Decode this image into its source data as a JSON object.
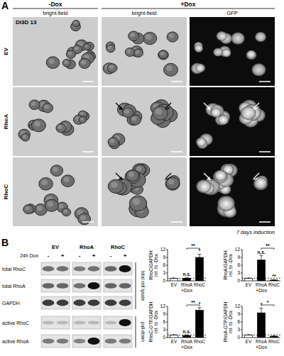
{
  "panel_a": {
    "label": "A",
    "column_headers": [
      "-Dox",
      "+Dox"
    ],
    "subheaders": [
      "bright-field",
      "bright-field",
      "GFP"
    ],
    "row_labels": [
      "EV",
      "RhoA",
      "RhoC"
    ],
    "cell_line": "DI3D 13",
    "footnote": "7 days induction"
  },
  "panel_b": {
    "label": "B",
    "blot": {
      "groups": [
        "EV",
        "RhoA",
        "RhoC"
      ],
      "treatment_label": "24h Dox",
      "treatment": [
        "-",
        "+"
      ],
      "rows": [
        {
          "name": "total RhoC",
          "intensity": [
            0.55,
            0.55,
            0.5,
            0.55,
            0.6,
            1.0
          ]
        },
        {
          "name": "total RhoA",
          "intensity": [
            0.6,
            0.6,
            0.55,
            1.0,
            0.6,
            0.6
          ]
        },
        {
          "name": "GAPDH",
          "intensity": [
            0.8,
            0.8,
            0.8,
            0.8,
            0.8,
            0.8
          ]
        },
        {
          "name": "active RhoC",
          "intensity": [
            0.2,
            0.2,
            0.2,
            0.2,
            0.2,
            1.0
          ]
        },
        {
          "name": "active RhoA",
          "intensity": [
            0.5,
            0.5,
            0.45,
            1.0,
            0.5,
            0.5
          ]
        }
      ],
      "sections": [
        {
          "label": "total cell lysate",
          "rows": [
            0,
            2
          ]
        },
        {
          "label": "pull-down",
          "rows": [
            3,
            4
          ]
        }
      ]
    }
  },
  "chart_data": [
    {
      "type": "bar",
      "y_label": [
        "RhoC/GAPDH",
        "rel. to -Dox"
      ],
      "x_label": "+Dox",
      "categories": [
        "EV",
        "RhoA",
        "RhoC"
      ],
      "values": [
        1,
        1,
        9
      ],
      "errors": [
        0.1,
        0.15,
        1.2
      ],
      "colors": [
        "#ffffff",
        "#000000",
        "#000000"
      ],
      "ylim": [
        0,
        12
      ],
      "yticks": [
        0,
        3,
        6,
        9,
        12
      ],
      "reference_line": 1,
      "annotations": [
        {
          "text": "n.s.",
          "over": "RhoA"
        },
        {
          "text": "*",
          "over": "RhoC"
        },
        {
          "text": "**",
          "between": [
            "RhoA",
            "RhoC"
          ]
        }
      ]
    },
    {
      "type": "bar",
      "y_label": [
        "RhoA/GAPDH",
        "rel. to -Dox"
      ],
      "x_label": "+Dox",
      "categories": [
        "EV",
        "RhoA",
        "RhoC"
      ],
      "values": [
        1,
        8,
        0.3
      ],
      "errors": [
        0.1,
        1.8,
        0.1
      ],
      "colors": [
        "#ffffff",
        "#000000",
        "#000000"
      ],
      "ylim": [
        0,
        12
      ],
      "yticks": [
        0,
        3,
        6,
        9,
        12
      ],
      "reference_line": 1,
      "annotations": [
        {
          "text": "n.s.",
          "over": "RhoA"
        },
        {
          "text": "**",
          "over": "RhoC"
        },
        {
          "text": "**",
          "between": [
            "RhoA",
            "RhoC"
          ]
        }
      ]
    },
    {
      "type": "bar",
      "y_label": [
        "RhoC-GTP/GAPDH",
        "rel. to -Dox"
      ],
      "x_label": "+Dox",
      "categories": [
        "EV",
        "RhoA",
        "RhoC"
      ],
      "values": [
        1,
        0.8,
        10.5
      ],
      "errors": [
        0.1,
        0.2,
        1.0
      ],
      "colors": [
        "#ffffff",
        "#000000",
        "#000000"
      ],
      "ylim": [
        0,
        12
      ],
      "yticks": [
        0,
        3,
        6,
        9,
        12
      ],
      "reference_line": 1,
      "annotations": [
        {
          "text": "n.s.",
          "over": "RhoA"
        },
        {
          "text": "*",
          "over": "RhoC"
        },
        {
          "text": "**",
          "between": [
            "RhoA",
            "RhoC"
          ]
        }
      ]
    },
    {
      "type": "bar",
      "y_label": [
        "RhoA-GTP/GAPDH",
        "rel. to -Dox"
      ],
      "x_label": "+Dox",
      "categories": [
        "EV",
        "RhoA",
        "RhoC"
      ],
      "values": [
        1,
        9.5,
        0.5
      ],
      "errors": [
        0.1,
        1.8,
        0.2
      ],
      "colors": [
        "#ffffff",
        "#000000",
        "#000000"
      ],
      "ylim": [
        0,
        12
      ],
      "yticks": [
        0,
        3,
        6,
        9,
        12
      ],
      "reference_line": 1,
      "annotations": [
        {
          "text": "*",
          "over": "RhoA"
        },
        {
          "text": "*",
          "between": [
            "RhoA",
            "RhoC"
          ]
        }
      ]
    }
  ]
}
